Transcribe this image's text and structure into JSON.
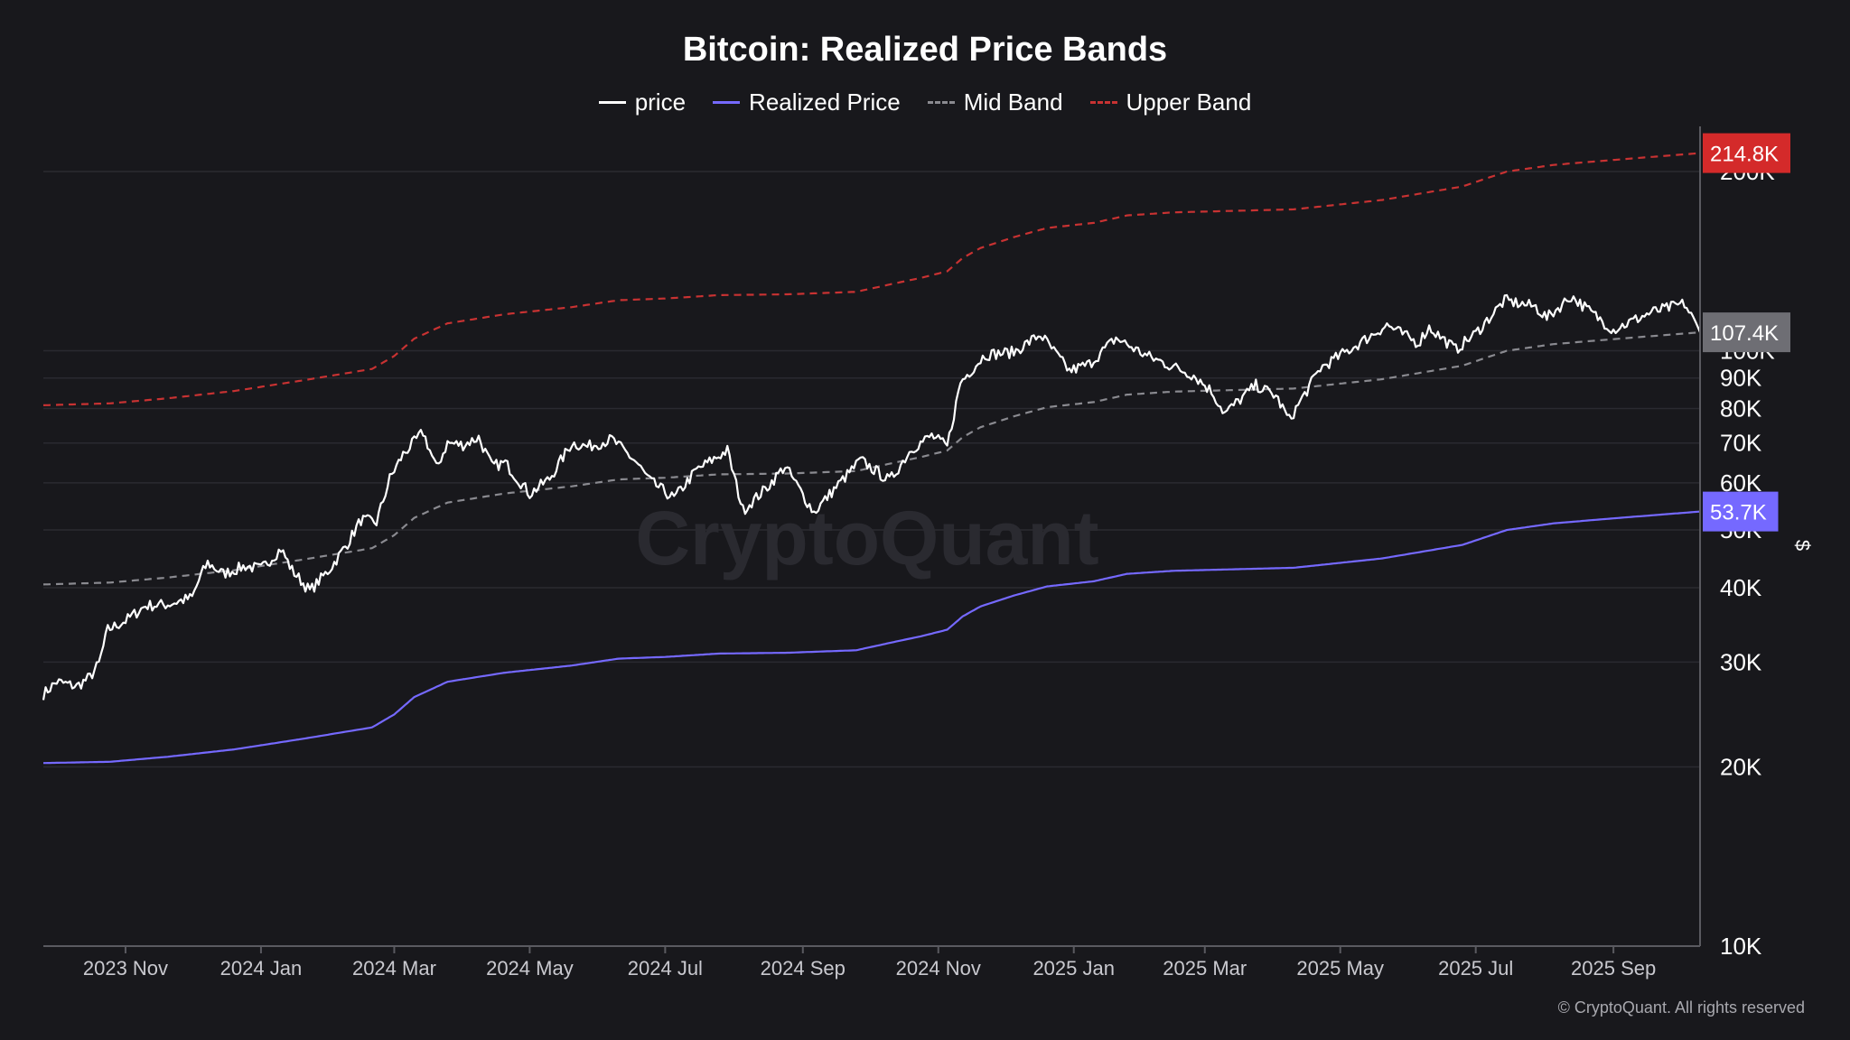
{
  "chart_data": {
    "type": "line",
    "title": "Bitcoin: Realized Price Bands",
    "yscale": "log",
    "ylim": [
      10000,
      230000
    ],
    "xlim": [
      "2023-09-25",
      "2025-10-10"
    ],
    "y_unit": "$",
    "y_ticks": [
      {
        "value": 10000,
        "label": "10K"
      },
      {
        "value": 20000,
        "label": "20K"
      },
      {
        "value": 30000,
        "label": "30K"
      },
      {
        "value": 40000,
        "label": "40K"
      },
      {
        "value": 50000,
        "label": "50K"
      },
      {
        "value": 60000,
        "label": "60K"
      },
      {
        "value": 70000,
        "label": "70K"
      },
      {
        "value": 80000,
        "label": "80K"
      },
      {
        "value": 90000,
        "label": "90K"
      },
      {
        "value": 100000,
        "label": "100K"
      },
      {
        "value": 200000,
        "label": "200K"
      }
    ],
    "x_ticks": [
      {
        "date": "2023-11-01",
        "label": "2023 Nov"
      },
      {
        "date": "2024-01-01",
        "label": "2024 Jan"
      },
      {
        "date": "2024-03-01",
        "label": "2024 Mar"
      },
      {
        "date": "2024-05-01",
        "label": "2024 May"
      },
      {
        "date": "2024-07-01",
        "label": "2024 Jul"
      },
      {
        "date": "2024-09-01",
        "label": "2024 Sep"
      },
      {
        "date": "2024-11-01",
        "label": "2024 Nov"
      },
      {
        "date": "2025-01-01",
        "label": "2025 Jan"
      },
      {
        "date": "2025-03-01",
        "label": "2025 Mar"
      },
      {
        "date": "2025-05-01",
        "label": "2025 May"
      },
      {
        "date": "2025-07-01",
        "label": "2025 Jul"
      },
      {
        "date": "2025-09-01",
        "label": "2025 Sep"
      }
    ],
    "series": [
      {
        "name": "price",
        "color": "#ffffff",
        "dash": false,
        "points": [
          [
            "2023-09-25",
            26500
          ],
          [
            "2023-10-01",
            27800
          ],
          [
            "2023-10-10",
            27300
          ],
          [
            "2023-10-16",
            28300
          ],
          [
            "2023-10-20",
            29800
          ],
          [
            "2023-10-24",
            34000
          ],
          [
            "2023-11-01",
            35200
          ],
          [
            "2023-11-10",
            37300
          ],
          [
            "2023-11-20",
            37500
          ],
          [
            "2023-12-01",
            38500
          ],
          [
            "2023-12-05",
            42000
          ],
          [
            "2023-12-08",
            44000
          ],
          [
            "2023-12-15",
            42200
          ],
          [
            "2023-12-25",
            43500
          ],
          [
            "2024-01-01",
            43000
          ],
          [
            "2024-01-10",
            46500
          ],
          [
            "2024-01-15",
            42800
          ],
          [
            "2024-01-23",
            39500
          ],
          [
            "2024-02-01",
            43000
          ],
          [
            "2024-02-09",
            47500
          ],
          [
            "2024-02-15",
            52000
          ],
          [
            "2024-02-22",
            51500
          ],
          [
            "2024-02-28",
            61000
          ],
          [
            "2024-03-05",
            67000
          ],
          [
            "2024-03-14",
            73000
          ],
          [
            "2024-03-20",
            63500
          ],
          [
            "2024-03-25",
            70000
          ],
          [
            "2024-04-01",
            69500
          ],
          [
            "2024-04-08",
            71500
          ],
          [
            "2024-04-14",
            64000
          ],
          [
            "2024-04-20",
            64800
          ],
          [
            "2024-05-01",
            57500
          ],
          [
            "2024-05-10",
            61000
          ],
          [
            "2024-05-20",
            70000
          ],
          [
            "2024-05-27",
            69000
          ],
          [
            "2024-06-07",
            71000
          ],
          [
            "2024-06-18",
            65000
          ],
          [
            "2024-06-24",
            60500
          ],
          [
            "2024-07-05",
            56500
          ],
          [
            "2024-07-15",
            63000
          ],
          [
            "2024-07-29",
            68000
          ],
          [
            "2024-08-05",
            54000
          ],
          [
            "2024-08-15",
            58500
          ],
          [
            "2024-08-24",
            64000
          ],
          [
            "2024-09-06",
            53500
          ],
          [
            "2024-09-15",
            58500
          ],
          [
            "2024-09-27",
            65500
          ],
          [
            "2024-10-10",
            60500
          ],
          [
            "2024-10-20",
            68500
          ],
          [
            "2024-10-29",
            72000
          ],
          [
            "2024-11-05",
            69000
          ],
          [
            "2024-11-11",
            88500
          ],
          [
            "2024-11-22",
            98500
          ],
          [
            "2024-12-05",
            99500
          ],
          [
            "2024-12-17",
            106500
          ],
          [
            "2024-12-30",
            92500
          ],
          [
            "2025-01-08",
            95000
          ],
          [
            "2025-01-20",
            105000
          ],
          [
            "2025-02-03",
            98000
          ],
          [
            "2025-02-24",
            91000
          ],
          [
            "2025-03-04",
            85500
          ],
          [
            "2025-03-10",
            78500
          ],
          [
            "2025-03-24",
            87500
          ],
          [
            "2025-04-02",
            84000
          ],
          [
            "2025-04-08",
            76500
          ],
          [
            "2025-04-22",
            93500
          ],
          [
            "2025-05-08",
            102000
          ],
          [
            "2025-05-22",
            110500
          ],
          [
            "2025-06-05",
            103000
          ],
          [
            "2025-06-10",
            109500
          ],
          [
            "2025-06-22",
            100500
          ],
          [
            "2025-07-01",
            107000
          ],
          [
            "2025-07-14",
            121500
          ],
          [
            "2025-07-28",
            118500
          ],
          [
            "2025-08-02",
            113500
          ],
          [
            "2025-08-13",
            123500
          ],
          [
            "2025-08-22",
            116000
          ],
          [
            "2025-09-01",
            108500
          ],
          [
            "2025-09-18",
            116000
          ],
          [
            "2025-10-03",
            120000
          ],
          [
            "2025-10-10",
            107400
          ]
        ]
      },
      {
        "name": "Realized Price",
        "color": "#7569ff",
        "dash": false,
        "points": [
          [
            "2023-09-25",
            20300
          ],
          [
            "2023-10-25",
            20400
          ],
          [
            "2023-11-20",
            20800
          ],
          [
            "2023-12-20",
            21400
          ],
          [
            "2024-01-20",
            22300
          ],
          [
            "2024-02-20",
            23300
          ],
          [
            "2024-03-01",
            24500
          ],
          [
            "2024-03-10",
            26200
          ],
          [
            "2024-03-25",
            27800
          ],
          [
            "2024-04-20",
            28800
          ],
          [
            "2024-05-20",
            29600
          ],
          [
            "2024-06-10",
            30400
          ],
          [
            "2024-07-01",
            30600
          ],
          [
            "2024-07-25",
            31000
          ],
          [
            "2024-08-25",
            31100
          ],
          [
            "2024-09-25",
            31400
          ],
          [
            "2024-10-10",
            32300
          ],
          [
            "2024-10-25",
            33200
          ],
          [
            "2024-11-05",
            34000
          ],
          [
            "2024-11-12",
            35800
          ],
          [
            "2024-11-20",
            37200
          ],
          [
            "2024-12-05",
            38800
          ],
          [
            "2024-12-20",
            40200
          ],
          [
            "2025-01-10",
            41000
          ],
          [
            "2025-01-25",
            42200
          ],
          [
            "2025-02-15",
            42700
          ],
          [
            "2025-04-10",
            43200
          ],
          [
            "2025-05-20",
            44800
          ],
          [
            "2025-06-25",
            47200
          ],
          [
            "2025-07-15",
            50000
          ],
          [
            "2025-08-05",
            51300
          ],
          [
            "2025-09-01",
            52300
          ],
          [
            "2025-10-10",
            53700
          ]
        ]
      },
      {
        "name": "Mid Band",
        "color": "#8a8a90",
        "dash": true,
        "points": [
          [
            "2023-09-25",
            40500
          ],
          [
            "2023-10-25",
            40800
          ],
          [
            "2023-11-20",
            41600
          ],
          [
            "2023-12-20",
            42800
          ],
          [
            "2024-01-20",
            44600
          ],
          [
            "2024-02-20",
            46600
          ],
          [
            "2024-03-01",
            49000
          ],
          [
            "2024-03-10",
            52400
          ],
          [
            "2024-03-25",
            55600
          ],
          [
            "2024-04-20",
            57600
          ],
          [
            "2024-05-20",
            59200
          ],
          [
            "2024-06-10",
            60800
          ],
          [
            "2024-07-01",
            61200
          ],
          [
            "2024-07-25",
            62000
          ],
          [
            "2024-08-25",
            62200
          ],
          [
            "2024-09-25",
            62800
          ],
          [
            "2024-10-10",
            64600
          ],
          [
            "2024-10-25",
            66400
          ],
          [
            "2024-11-05",
            68000
          ],
          [
            "2024-11-12",
            71600
          ],
          [
            "2024-11-20",
            74400
          ],
          [
            "2024-12-05",
            77600
          ],
          [
            "2024-12-20",
            80400
          ],
          [
            "2025-01-10",
            82000
          ],
          [
            "2025-01-25",
            84400
          ],
          [
            "2025-02-15",
            85400
          ],
          [
            "2025-04-10",
            86400
          ],
          [
            "2025-05-20",
            89600
          ],
          [
            "2025-06-25",
            94400
          ],
          [
            "2025-07-15",
            100000
          ],
          [
            "2025-08-05",
            102600
          ],
          [
            "2025-09-01",
            104600
          ],
          [
            "2025-10-10",
            107400
          ]
        ]
      },
      {
        "name": "Upper Band",
        "color": "#c83232",
        "dash": true,
        "points": [
          [
            "2023-09-25",
            81000
          ],
          [
            "2023-10-25",
            81600
          ],
          [
            "2023-11-20",
            83200
          ],
          [
            "2023-12-20",
            85600
          ],
          [
            "2024-01-20",
            89200
          ],
          [
            "2024-02-20",
            93200
          ],
          [
            "2024-03-01",
            98000
          ],
          [
            "2024-03-10",
            104800
          ],
          [
            "2024-03-25",
            111200
          ],
          [
            "2024-04-20",
            115200
          ],
          [
            "2024-05-20",
            118400
          ],
          [
            "2024-06-10",
            121600
          ],
          [
            "2024-07-01",
            122400
          ],
          [
            "2024-07-25",
            124000
          ],
          [
            "2024-08-25",
            124400
          ],
          [
            "2024-09-25",
            125600
          ],
          [
            "2024-10-10",
            129200
          ],
          [
            "2024-10-25",
            132800
          ],
          [
            "2024-11-05",
            136000
          ],
          [
            "2024-11-12",
            143200
          ],
          [
            "2024-11-20",
            148800
          ],
          [
            "2024-12-05",
            155200
          ],
          [
            "2024-12-20",
            160800
          ],
          [
            "2025-01-10",
            164000
          ],
          [
            "2025-01-25",
            168800
          ],
          [
            "2025-02-15",
            170800
          ],
          [
            "2025-04-10",
            172800
          ],
          [
            "2025-05-20",
            179200
          ],
          [
            "2025-06-25",
            188800
          ],
          [
            "2025-07-15",
            200000
          ],
          [
            "2025-08-05",
            205200
          ],
          [
            "2025-09-01",
            209200
          ],
          [
            "2025-10-10",
            214800
          ]
        ]
      }
    ],
    "value_badges": [
      {
        "series": "Upper Band",
        "label": "214.8K",
        "value": 214800,
        "color": "#d42a2a"
      },
      {
        "series": "price",
        "label": "107.4K",
        "value": 107400,
        "color": "#6e6e74"
      },
      {
        "series": "Realized Price",
        "label": "53.7K",
        "value": 53700,
        "color": "#7569ff"
      }
    ]
  },
  "legend": [
    {
      "label": "price",
      "color": "#ffffff",
      "dash": false
    },
    {
      "label": "Realized Price",
      "color": "#7569ff",
      "dash": false
    },
    {
      "label": "Mid Band",
      "color": "#8a8a90",
      "dash": true
    },
    {
      "label": "Upper Band",
      "color": "#c83232",
      "dash": true
    }
  ],
  "watermark": "CryptoQuant",
  "copyright": "© CryptoQuant. All rights reserved"
}
